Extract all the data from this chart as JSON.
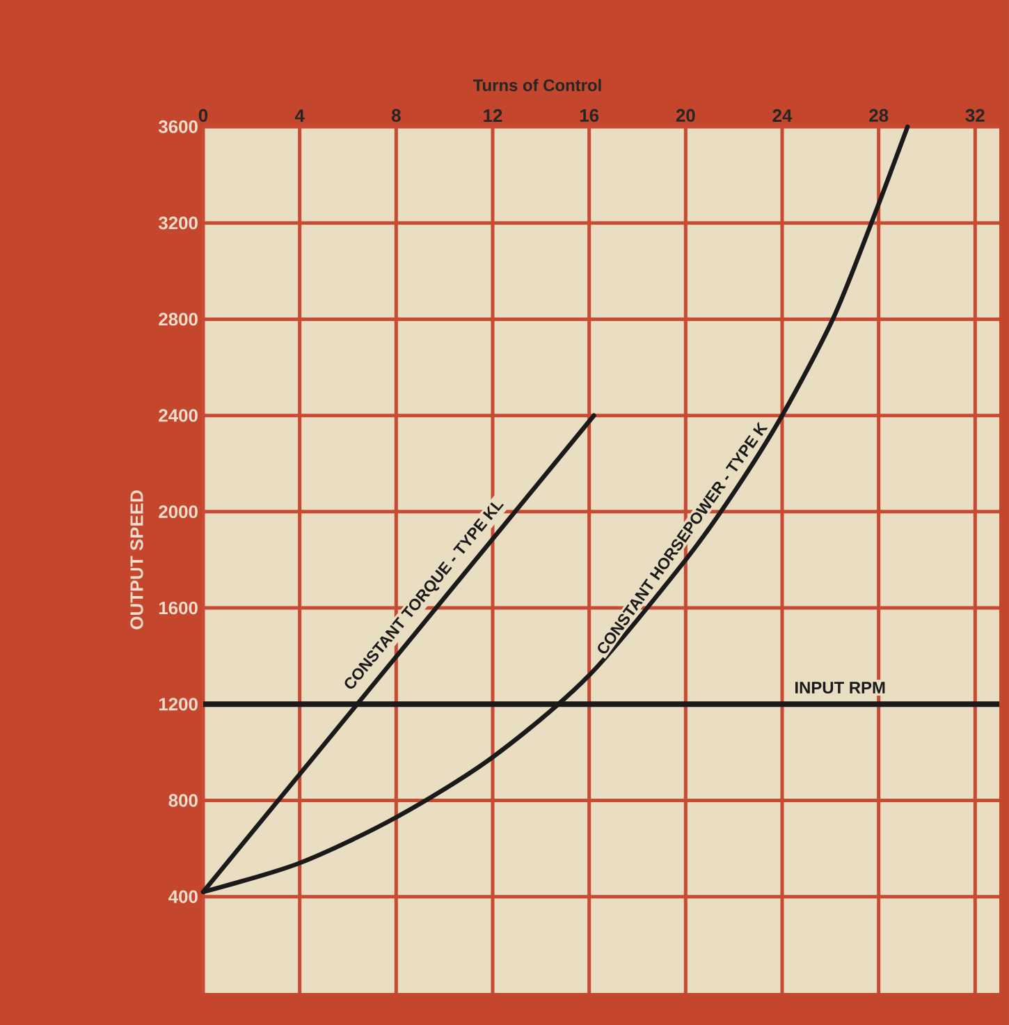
{
  "chart_data": {
    "type": "line",
    "xlabel": "Turns of Control",
    "ylabel": "OUTPUT SPEED",
    "xlim": [
      0,
      33
    ],
    "xticks": [
      0,
      4,
      8,
      12,
      16,
      20,
      24,
      28,
      32
    ],
    "ylim": [
      0,
      3600
    ],
    "yticks": [
      400,
      800,
      1200,
      1600,
      2000,
      2400,
      2800,
      3200,
      3600
    ],
    "grid": true,
    "marker": "none",
    "line_style": "solid",
    "series": [
      {
        "name": "CONSTANT TORQUE - TYPE KL",
        "color": "#1a1a1a",
        "x": [
          0,
          16.2
        ],
        "values": [
          420,
          2400
        ]
      },
      {
        "name": "CONSTANT HORSEPOWER - TYPE K",
        "color": "#1a1a1a",
        "x": [
          0,
          4,
          8,
          12,
          16,
          20,
          22,
          24,
          26.1,
          27.7,
          29.2
        ],
        "values": [
          420,
          540,
          730,
          980,
          1320,
          1800,
          2080,
          2400,
          2800,
          3200,
          3600
        ]
      }
    ],
    "ref_lines": [
      {
        "axis": "y",
        "value": 1200,
        "label": "INPUT RPM",
        "color": "#1a1a1a"
      }
    ]
  }
}
